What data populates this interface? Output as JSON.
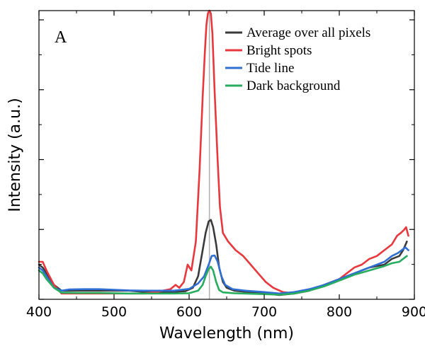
{
  "chart_data": {
    "type": "line",
    "panel_label": "A",
    "xlabel": "Wavelength (nm)",
    "ylabel": "Intensity (a.u.)",
    "xlim": [
      400,
      900
    ],
    "ylim": [
      0,
      100
    ],
    "x_ticks": [
      400,
      500,
      600,
      700,
      800,
      900
    ],
    "y_ticks": [
      0,
      24.2,
      48.4,
      72.6,
      96.8
    ],
    "show_y_tick_labels": false,
    "legend_position": "top-right",
    "reference_line_x": 627,
    "reference_line_color": "#b0b0b0",
    "series": [
      {
        "name": "Average over all pixels",
        "color": "#3a3a3a",
        "points": [
          [
            400,
            12
          ],
          [
            405,
            11
          ],
          [
            410,
            9
          ],
          [
            420,
            5
          ],
          [
            430,
            3
          ],
          [
            450,
            3
          ],
          [
            480,
            3
          ],
          [
            500,
            3
          ],
          [
            520,
            3
          ],
          [
            540,
            2.6
          ],
          [
            560,
            2.5
          ],
          [
            580,
            2.6
          ],
          [
            595,
            2.8
          ],
          [
            605,
            4
          ],
          [
            612,
            8
          ],
          [
            618,
            17
          ],
          [
            622,
            23
          ],
          [
            626,
            27
          ],
          [
            629,
            27.5
          ],
          [
            632,
            25
          ],
          [
            636,
            19
          ],
          [
            640,
            11
          ],
          [
            645,
            6
          ],
          [
            650,
            4
          ],
          [
            660,
            3
          ],
          [
            680,
            2.5
          ],
          [
            700,
            2
          ],
          [
            720,
            1.5
          ],
          [
            740,
            2
          ],
          [
            760,
            3
          ],
          [
            780,
            5
          ],
          [
            800,
            7
          ],
          [
            820,
            9
          ],
          [
            840,
            11
          ],
          [
            860,
            12
          ],
          [
            870,
            14
          ],
          [
            880,
            15
          ],
          [
            885,
            17
          ],
          [
            890,
            20
          ]
        ]
      },
      {
        "name": "Bright spots",
        "color": "#e8383d",
        "points": [
          [
            400,
            13
          ],
          [
            405,
            13
          ],
          [
            410,
            10
          ],
          [
            420,
            5
          ],
          [
            430,
            2
          ],
          [
            450,
            2
          ],
          [
            480,
            2
          ],
          [
            500,
            2
          ],
          [
            520,
            2
          ],
          [
            540,
            2
          ],
          [
            555,
            2.5
          ],
          [
            565,
            3
          ],
          [
            575,
            3.5
          ],
          [
            582,
            5
          ],
          [
            587,
            4
          ],
          [
            593,
            6
          ],
          [
            598,
            12
          ],
          [
            603,
            10
          ],
          [
            609,
            20
          ],
          [
            614,
            45
          ],
          [
            618,
            70
          ],
          [
            621,
            86
          ],
          [
            623,
            95
          ],
          [
            625,
            99
          ],
          [
            627,
            100
          ],
          [
            629,
            99
          ],
          [
            631,
            92
          ],
          [
            634,
            72
          ],
          [
            638,
            48
          ],
          [
            641,
            32
          ],
          [
            645,
            23
          ],
          [
            652,
            20
          ],
          [
            662,
            17
          ],
          [
            672,
            15
          ],
          [
            682,
            12
          ],
          [
            692,
            9
          ],
          [
            702,
            6
          ],
          [
            712,
            4
          ],
          [
            725,
            2.5
          ],
          [
            740,
            2
          ],
          [
            760,
            3
          ],
          [
            780,
            5
          ],
          [
            800,
            7
          ],
          [
            820,
            11
          ],
          [
            830,
            12
          ],
          [
            840,
            14
          ],
          [
            850,
            15
          ],
          [
            860,
            17
          ],
          [
            870,
            19
          ],
          [
            877,
            22
          ],
          [
            882,
            23
          ],
          [
            886,
            24
          ],
          [
            889,
            25
          ],
          [
            892,
            22
          ]
        ]
      },
      {
        "name": "Tide line",
        "color": "#2f6fd4",
        "points": [
          [
            400,
            11
          ],
          [
            405,
            10
          ],
          [
            410,
            8
          ],
          [
            420,
            4
          ],
          [
            430,
            3
          ],
          [
            440,
            3.4
          ],
          [
            460,
            3.5
          ],
          [
            480,
            3.5
          ],
          [
            500,
            3.3
          ],
          [
            520,
            3.1
          ],
          [
            540,
            3
          ],
          [
            560,
            3
          ],
          [
            580,
            3
          ],
          [
            600,
            3.6
          ],
          [
            612,
            5.5
          ],
          [
            620,
            8
          ],
          [
            626,
            12
          ],
          [
            630,
            15
          ],
          [
            634,
            15.2
          ],
          [
            638,
            13
          ],
          [
            643,
            8
          ],
          [
            648,
            5
          ],
          [
            658,
            3.5
          ],
          [
            675,
            3
          ],
          [
            700,
            2.5
          ],
          [
            720,
            2
          ],
          [
            740,
            2.5
          ],
          [
            760,
            3.5
          ],
          [
            780,
            5
          ],
          [
            800,
            7
          ],
          [
            820,
            9
          ],
          [
            840,
            11
          ],
          [
            860,
            13
          ],
          [
            870,
            15
          ],
          [
            878,
            16
          ],
          [
            883,
            17
          ],
          [
            888,
            18
          ],
          [
            892,
            17
          ]
        ]
      },
      {
        "name": "Dark background",
        "color": "#27ad5e",
        "points": [
          [
            400,
            10
          ],
          [
            405,
            9
          ],
          [
            410,
            7
          ],
          [
            420,
            4
          ],
          [
            430,
            2.3
          ],
          [
            450,
            2.2
          ],
          [
            480,
            2.2
          ],
          [
            500,
            2.1
          ],
          [
            520,
            2
          ],
          [
            540,
            2
          ],
          [
            560,
            2
          ],
          [
            580,
            2
          ],
          [
            600,
            2.1
          ],
          [
            612,
            3
          ],
          [
            618,
            5
          ],
          [
            622,
            8
          ],
          [
            626,
            10.5
          ],
          [
            629,
            11.3
          ],
          [
            632,
            10
          ],
          [
            636,
            6
          ],
          [
            640,
            3.2
          ],
          [
            645,
            2.4
          ],
          [
            660,
            2.1
          ],
          [
            700,
            1.8
          ],
          [
            720,
            1.6
          ],
          [
            740,
            2
          ],
          [
            760,
            3
          ],
          [
            780,
            4.5
          ],
          [
            800,
            6.5
          ],
          [
            820,
            8.5
          ],
          [
            840,
            10
          ],
          [
            860,
            11.5
          ],
          [
            870,
            12.5
          ],
          [
            880,
            13
          ],
          [
            885,
            14
          ],
          [
            890,
            15
          ]
        ]
      }
    ]
  }
}
